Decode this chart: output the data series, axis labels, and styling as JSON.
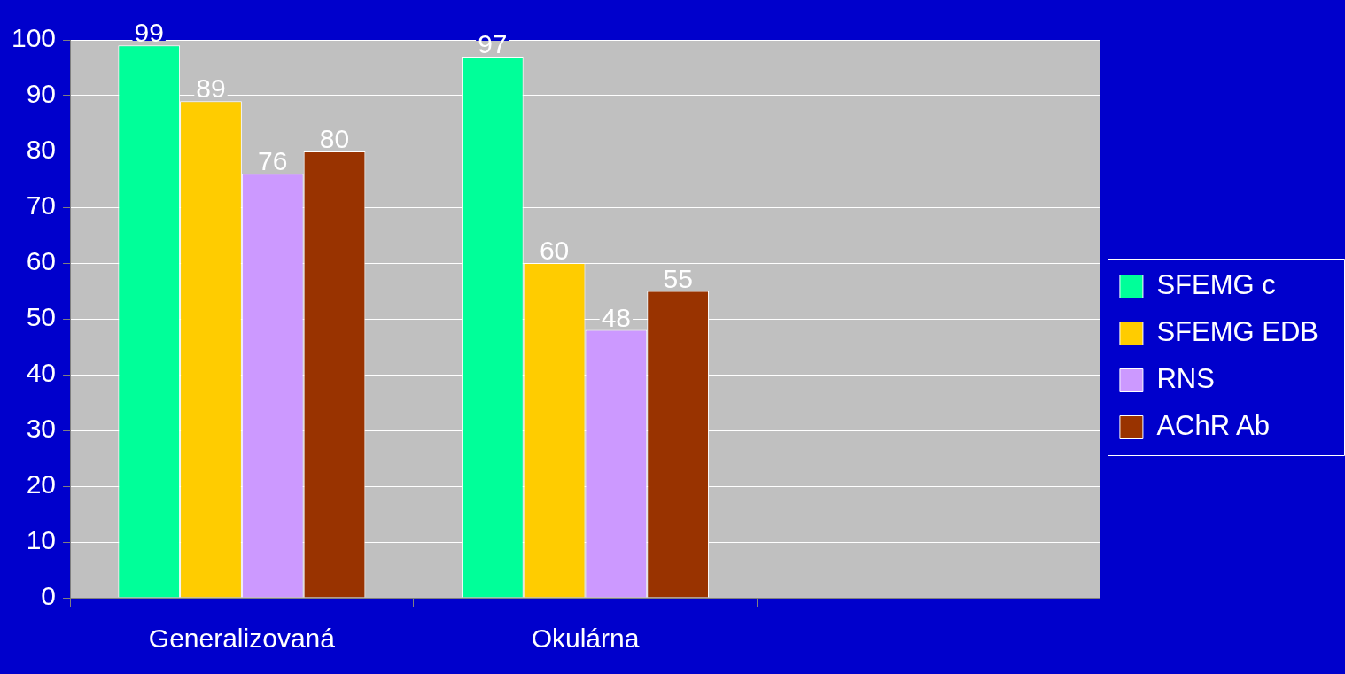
{
  "chart_data": {
    "type": "bar",
    "categories": [
      "Generalizovaná",
      "Okulárna",
      null
    ],
    "series": [
      {
        "name": "SFEMG c",
        "color": "#00ff99",
        "values": [
          99,
          97,
          null
        ]
      },
      {
        "name": "SFEMG EDB",
        "color": "#ffcc00",
        "values": [
          89,
          60,
          null
        ]
      },
      {
        "name": "RNS",
        "color": "#cc99ff",
        "values": [
          76,
          48,
          null
        ]
      },
      {
        "name": "AChR Ab",
        "color": "#993300",
        "values": [
          80,
          55,
          null
        ]
      }
    ],
    "ylim": [
      0,
      100
    ],
    "yticks": [
      0,
      10,
      20,
      30,
      40,
      50,
      60,
      70,
      80,
      90,
      100
    ],
    "grid": "y",
    "legend": "right",
    "data_labels": true
  }
}
